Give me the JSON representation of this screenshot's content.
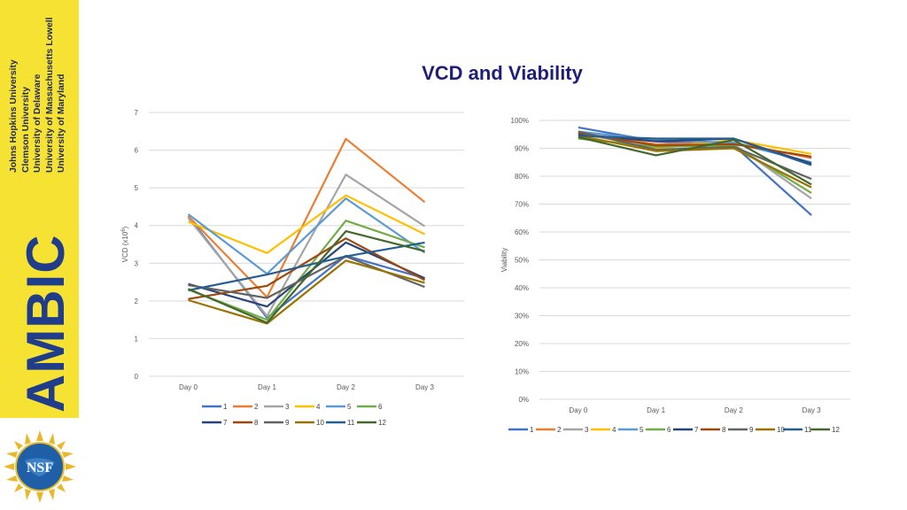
{
  "sidebar": {
    "institutions": [
      "Johns Hopkins University",
      "Clemson University",
      "University of Delaware",
      "University of Massachusetts Lowell",
      "University of Maryland"
    ],
    "logo_text": "AMBIC",
    "seal_text": "NSF"
  },
  "title": "VCD and Viability",
  "colors": {
    "1": "#4472c4",
    "2": "#ed7d31",
    "3": "#a5a5a5",
    "4": "#ffc000",
    "5": "#5b9bd5",
    "6": "#70ad47",
    "7": "#264478",
    "8": "#9e480e",
    "9": "#636363",
    "10": "#997300",
    "11": "#255e91",
    "12": "#43682b"
  },
  "chart_data": [
    {
      "type": "line",
      "title": "",
      "xlabel": "",
      "ylabel": "VCD (x10^6)",
      "ylabel_base": "VCD (x10",
      "ylabel_exp": "6",
      "ylabel_close": ")",
      "ylim": [
        0,
        7
      ],
      "yticks": [
        "0",
        "1",
        "2",
        "3",
        "4",
        "5",
        "6",
        "7"
      ],
      "categories": [
        "Day 0",
        "Day 1",
        "Day 2",
        "Day 3"
      ],
      "series": [
        {
          "name": "1",
          "values": [
            4.25,
            1.55,
            3.2,
            2.6
          ]
        },
        {
          "name": "2",
          "values": [
            4.25,
            2.1,
            6.3,
            4.62
          ]
        },
        {
          "name": "3",
          "values": [
            4.2,
            1.6,
            5.35,
            3.98
          ]
        },
        {
          "name": "4",
          "values": [
            4.1,
            3.27,
            4.8,
            3.77
          ]
        },
        {
          "name": "5",
          "values": [
            4.3,
            2.72,
            4.72,
            3.28
          ]
        },
        {
          "name": "6",
          "values": [
            2.3,
            1.5,
            4.13,
            3.42
          ]
        },
        {
          "name": "7",
          "values": [
            2.45,
            1.85,
            3.55,
            2.6
          ]
        },
        {
          "name": "8",
          "values": [
            2.05,
            2.4,
            3.66,
            2.55
          ]
        },
        {
          "name": "9",
          "values": [
            2.42,
            2.08,
            3.18,
            2.37
          ]
        },
        {
          "name": "10",
          "values": [
            2.02,
            1.4,
            3.07,
            2.48
          ]
        },
        {
          "name": "11",
          "values": [
            2.28,
            2.7,
            3.18,
            3.55
          ]
        },
        {
          "name": "12",
          "values": [
            2.32,
            1.42,
            3.85,
            3.32
          ]
        }
      ]
    },
    {
      "type": "line",
      "title": "",
      "xlabel": "",
      "ylabel": "Viability",
      "ylim": [
        0,
        100
      ],
      "yticks": [
        "0%",
        "10%",
        "20%",
        "30%",
        "40%",
        "50%",
        "60%",
        "70%",
        "80%",
        "90%",
        "100%"
      ],
      "categories": [
        "Day 0",
        "Day 1",
        "Day 2",
        "Day 3"
      ],
      "series": [
        {
          "name": "1",
          "values": [
            97.5,
            92.5,
            91.0,
            66.0
          ]
        },
        {
          "name": "2",
          "values": [
            95.5,
            91.5,
            92.0,
            86.5
          ]
        },
        {
          "name": "3",
          "values": [
            95.0,
            91.0,
            91.5,
            72.0
          ]
        },
        {
          "name": "4",
          "values": [
            94.0,
            90.0,
            93.0,
            88.0
          ]
        },
        {
          "name": "5",
          "values": [
            96.0,
            93.0,
            92.0,
            85.0
          ]
        },
        {
          "name": "6",
          "values": [
            93.5,
            90.5,
            91.0,
            74.0
          ]
        },
        {
          "name": "7",
          "values": [
            95.0,
            92.5,
            93.5,
            84.5
          ]
        },
        {
          "name": "8",
          "values": [
            95.5,
            91.0,
            91.5,
            87.0
          ]
        },
        {
          "name": "9",
          "values": [
            96.0,
            89.5,
            90.5,
            79.0
          ]
        },
        {
          "name": "10",
          "values": [
            94.5,
            89.0,
            90.0,
            76.0
          ]
        },
        {
          "name": "11",
          "values": [
            94.5,
            93.5,
            93.5,
            84.0
          ]
        },
        {
          "name": "12",
          "values": [
            94.0,
            87.5,
            93.0,
            77.0
          ]
        }
      ]
    }
  ]
}
